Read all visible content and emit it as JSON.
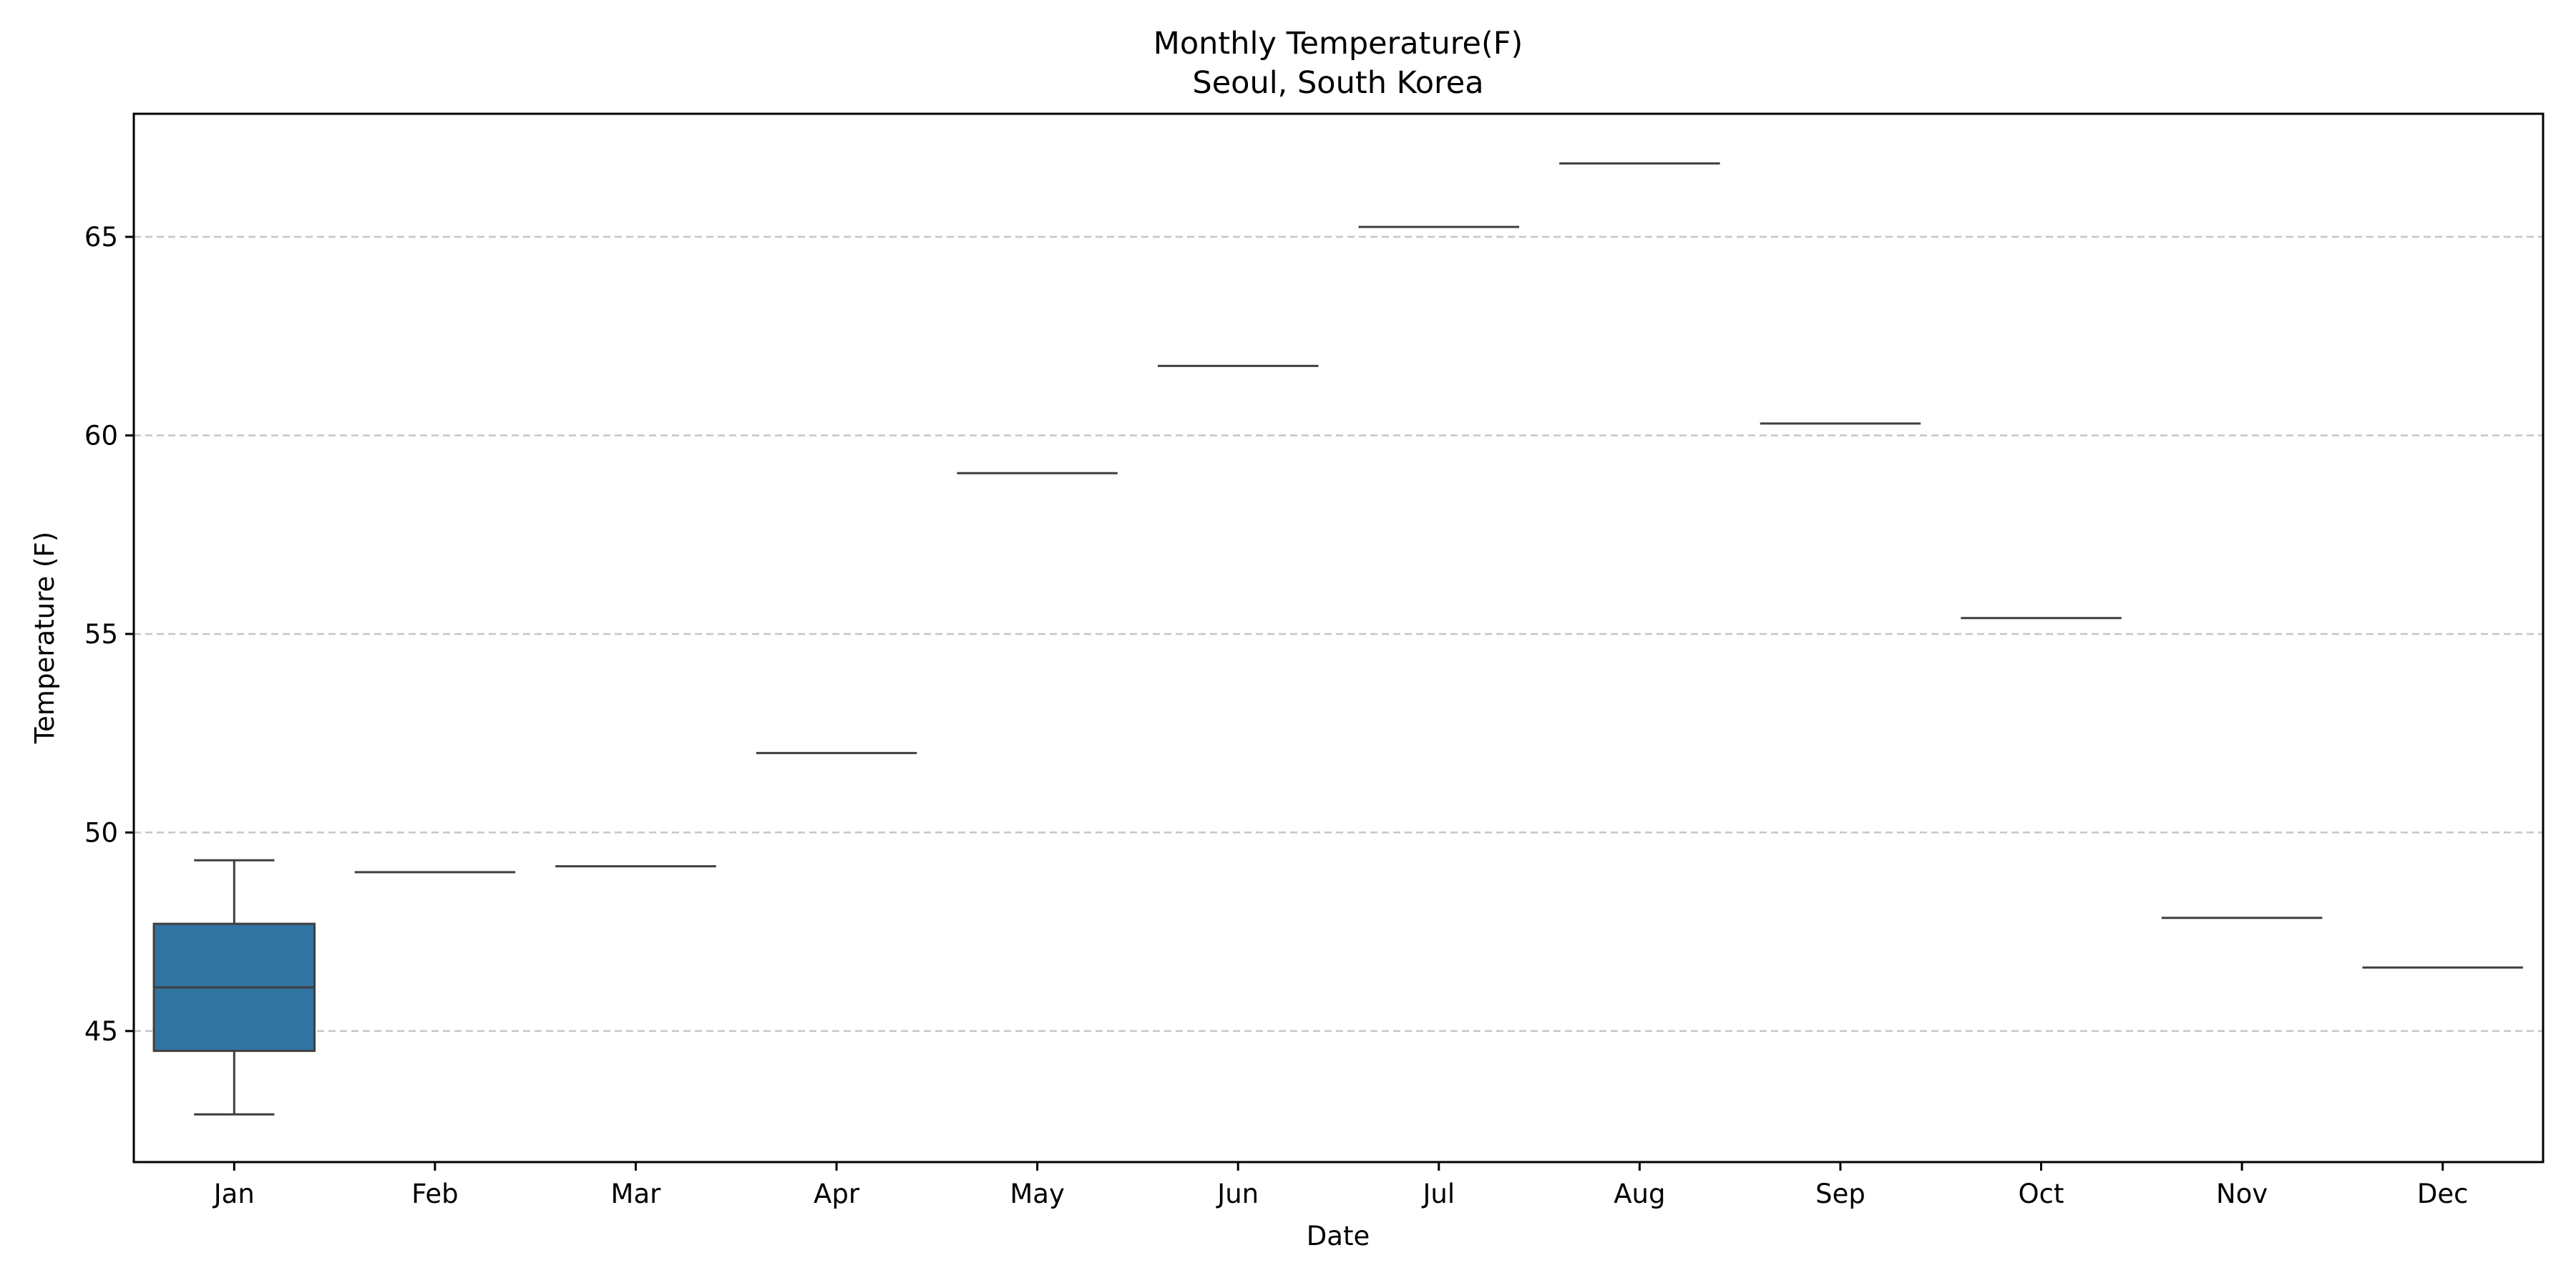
{
  "chart_data": {
    "type": "box",
    "title": "Monthly Temperature(F)",
    "subtitle": "Seoul, South Korea",
    "xlabel": "Date",
    "ylabel": "Temperature (F)",
    "ylim": [
      41.7,
      68.1
    ],
    "yticks": [
      45,
      50,
      55,
      60,
      65
    ],
    "ytick_labels": [
      "45",
      "50",
      "55",
      "60",
      "65"
    ],
    "grid": "horizontal dashed",
    "categories": [
      "Jan",
      "Feb",
      "Mar",
      "Apr",
      "May",
      "Jun",
      "Jul",
      "Aug",
      "Sep",
      "Oct",
      "Nov",
      "Dec"
    ],
    "boxes": [
      {
        "category": "Jan",
        "whisker_low": 42.9,
        "q1": 44.5,
        "median": 46.1,
        "q3": 47.7,
        "whisker_high": 49.3
      },
      {
        "category": "Feb",
        "whisker_low": 49.0,
        "q1": 49.0,
        "median": 49.0,
        "q3": 49.0,
        "whisker_high": 49.0
      },
      {
        "category": "Mar",
        "whisker_low": 49.15,
        "q1": 49.15,
        "median": 49.15,
        "q3": 49.15,
        "whisker_high": 49.15
      },
      {
        "category": "Apr",
        "whisker_low": 52.0,
        "q1": 52.0,
        "median": 52.0,
        "q3": 52.0,
        "whisker_high": 52.0
      },
      {
        "category": "May",
        "whisker_low": 59.05,
        "q1": 59.05,
        "median": 59.05,
        "q3": 59.05,
        "whisker_high": 59.05
      },
      {
        "category": "Jun",
        "whisker_low": 61.75,
        "q1": 61.75,
        "median": 61.75,
        "q3": 61.75,
        "whisker_high": 61.75
      },
      {
        "category": "Jul",
        "whisker_low": 65.25,
        "q1": 65.25,
        "median": 65.25,
        "q3": 65.25,
        "whisker_high": 65.25
      },
      {
        "category": "Aug",
        "whisker_low": 66.85,
        "q1": 66.85,
        "median": 66.85,
        "q3": 66.85,
        "whisker_high": 66.85
      },
      {
        "category": "Sep",
        "whisker_low": 60.3,
        "q1": 60.3,
        "median": 60.3,
        "q3": 60.3,
        "whisker_high": 60.3
      },
      {
        "category": "Oct",
        "whisker_low": 55.4,
        "q1": 55.4,
        "median": 55.4,
        "q3": 55.4,
        "whisker_high": 55.4
      },
      {
        "category": "Nov",
        "whisker_low": 47.85,
        "q1": 47.85,
        "median": 47.85,
        "q3": 47.85,
        "whisker_high": 47.85
      },
      {
        "category": "Dec",
        "whisker_low": 46.6,
        "q1": 46.6,
        "median": 46.6,
        "q3": 46.6,
        "whisker_high": 46.6
      }
    ],
    "colors": {
      "box_fill": "#3274a1",
      "line": "#3f3f3f",
      "grid": "#c6c6c6",
      "frame": "#000000"
    }
  }
}
